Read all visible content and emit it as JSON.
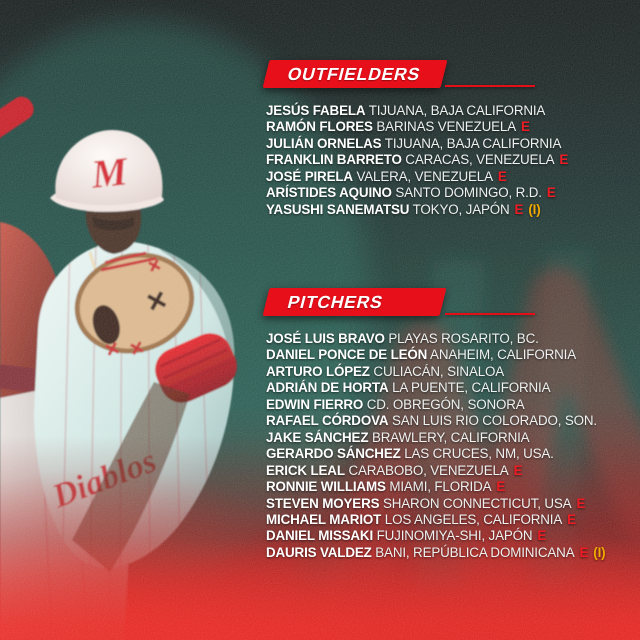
{
  "poster": {
    "team_logo_letter": "M",
    "jersey_script": "Diablos"
  },
  "markers": {
    "extranjero": "E",
    "import": "(I)"
  },
  "colors": {
    "accent_red": "#e60f1a",
    "marker_red": "#ed1c24",
    "marker_yellow": "#f2a900",
    "text_white": "#f4f6f5",
    "background_teal": "#143c34"
  },
  "sections": [
    {
      "id": "outfielders",
      "title": "OUTFIELDERS",
      "players": [
        {
          "name": "JESÚS FABELA",
          "origin": "TIJUANA, BAJA CALIFORNIA",
          "e": false,
          "i": false
        },
        {
          "name": "RAMÓN FLORES",
          "origin": "BARINAS VENEZUELA",
          "e": true,
          "i": false
        },
        {
          "name": "JULIÁN ORNELAS",
          "origin": "TIJUANA, BAJA CALIFORNIA",
          "e": false,
          "i": false
        },
        {
          "name": "FRANKLIN BARRETO",
          "origin": "CARACAS, VENEZUELA",
          "e": true,
          "i": false
        },
        {
          "name": "JOSÉ PIRELA",
          "origin": "VALERA, VENEZUELA",
          "e": true,
          "i": false
        },
        {
          "name": "ARÍSTIDES AQUINO",
          "origin": "SANTO DOMINGO, R.D.",
          "e": true,
          "i": false
        },
        {
          "name": "YASUSHI SANEMATSU",
          "origin": "TOKYO, JAPÓN",
          "e": true,
          "i": true
        }
      ]
    },
    {
      "id": "pitchers",
      "title": "PITCHERS",
      "players": [
        {
          "name": "JOSÉ LUIS BRAVO",
          "origin": "PLAYAS ROSARITO, BC.",
          "e": false,
          "i": false
        },
        {
          "name": "DANIEL PONCE DE LEÓN",
          "origin": "ANAHEIM, CALIFORNIA",
          "e": false,
          "i": false
        },
        {
          "name": "ARTURO LÓPEZ",
          "origin": "CULIACÁN, SINALOA",
          "e": false,
          "i": false
        },
        {
          "name": "ADRIÁN DE HORTA",
          "origin": "LA PUENTE, CALIFORNIA",
          "e": false,
          "i": false
        },
        {
          "name": "EDWIN FIERRO",
          "origin": "CD. OBREGÓN, SONORA",
          "e": false,
          "i": false
        },
        {
          "name": "RAFAEL CÓRDOVA",
          "origin": "SAN LUIS RIO COLORADO, SON.",
          "e": false,
          "i": false
        },
        {
          "name": "JAKE SÁNCHEZ",
          "origin": "BRAWLERY, CALIFORNIA",
          "e": false,
          "i": false
        },
        {
          "name": "GERARDO SÁNCHEZ",
          "origin": "LAS CRUCES, NM, USA.",
          "e": false,
          "i": false
        },
        {
          "name": "ERICK LEAL",
          "origin": "CARABOBO, VENEZUELA",
          "e": true,
          "i": false
        },
        {
          "name": "RONNIE WILLIAMS",
          "origin": "MIAMI, FLORIDA",
          "e": true,
          "i": false
        },
        {
          "name": "STEVEN MOYERS",
          "origin": "SHARON CONNECTICUT, USA",
          "e": true,
          "i": false
        },
        {
          "name": "MICHAEL MARIOT",
          "origin": "LOS ANGELES, CALIFORNIA",
          "e": true,
          "i": false
        },
        {
          "name": "DANIEL MISSAKI",
          "origin": "FUJINOMIYA-SHI, JAPÓN",
          "e": true,
          "i": false
        },
        {
          "name": "DAURIS VALDEZ",
          "origin": "BANI, REPÚBLICA DOMINICANA",
          "e": true,
          "i": true
        }
      ]
    }
  ]
}
